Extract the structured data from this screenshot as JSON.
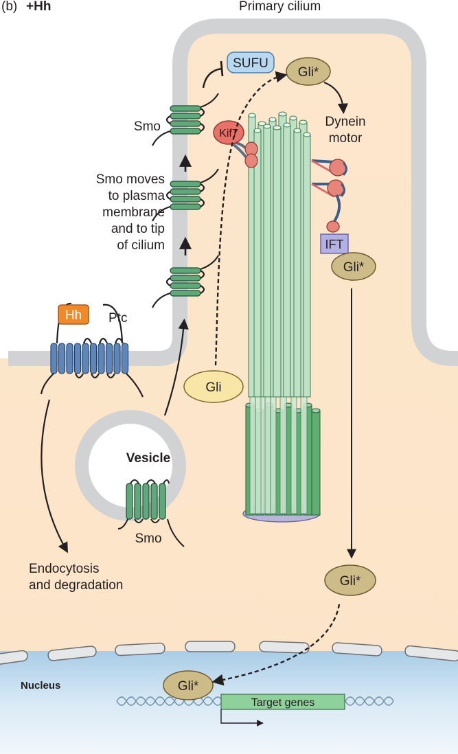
{
  "panel": {
    "letter": "(b)",
    "condition": "+Hh"
  },
  "labels": {
    "primary_cilium": "Primary cilium",
    "sufu": "SUFU",
    "gli_active": "Gli*",
    "gli_inactive": "Gli",
    "kif7": "Kif7",
    "dynein_line1": "Dynein",
    "dynein_line2": "motor",
    "ift": "IFT",
    "smo": "Smo",
    "smo_moves_lines": [
      "Smo moves",
      "to plasma",
      "membrane",
      "and to tip",
      "of cilium"
    ],
    "hh": "Hh",
    "ptc": "Ptc",
    "vesicle": "Vesicle",
    "endocytosis_line1": "Endocytosis",
    "endocytosis_line2": "and degradation",
    "nucleus": "Nucleus",
    "target_genes": "Target genes"
  },
  "colors": {
    "cytoplasm": "#fbe6cc",
    "membrane": "#d2d4d6",
    "nucleus": "#cfe3f1",
    "smo_green": "#5fa87a",
    "microtubule": "#bfe2c6",
    "gli_active": "#cdbb88",
    "gli_inactive": "#f7e6a6",
    "sufu": "#b8d8f0",
    "kif7": "#e87268",
    "hh": "#f08a28",
    "ptc": "#5d87ba",
    "ift": "#a9a9de"
  }
}
